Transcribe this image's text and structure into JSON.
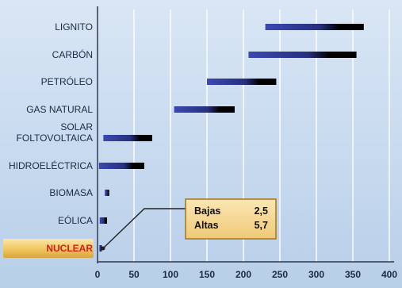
{
  "chart_data": {
    "type": "bar",
    "orientation": "horizontal",
    "title": "",
    "xlabel": "",
    "ylabel": "",
    "xlim": [
      0,
      400
    ],
    "x_ticks": [
      "0",
      "50",
      "100",
      "150",
      "200",
      "250",
      "300",
      "350",
      "400"
    ],
    "grid": "vertical",
    "categories": [
      {
        "lines": [
          "LIGNITO"
        ],
        "low": 230,
        "high": 365
      },
      {
        "lines": [
          "CARBÓN"
        ],
        "low": 207,
        "high": 355
      },
      {
        "lines": [
          "PETRÓLEO"
        ],
        "low": 150,
        "high": 245
      },
      {
        "lines": [
          "GAS NATURAL"
        ],
        "low": 105,
        "high": 188
      },
      {
        "lines": [
          "SOLAR",
          "FOLTOVOLTAICA"
        ],
        "low": 8,
        "high": 75
      },
      {
        "lines": [
          "HIDROELÉCTRICA"
        ],
        "low": 2,
        "high": 64
      },
      {
        "lines": [
          "BIOMASA"
        ],
        "low": 10,
        "high": 16
      },
      {
        "lines": [
          "EÓLICA"
        ],
        "low": 3,
        "high": 13
      },
      {
        "lines": [
          "NUCLEAR"
        ],
        "low": 2.5,
        "high": 5.7,
        "highlight": true
      }
    ],
    "callout": {
      "rows": [
        {
          "label": "Bajas",
          "value": "2,5"
        },
        {
          "label": "Altas",
          "value": "5,7"
        }
      ]
    },
    "colors": {
      "background": "#c4d8ee",
      "background_light": "#e2ecf7",
      "grid": "#ffffff",
      "bar_start": "#2f3c9e",
      "bar_end": "#000000",
      "axis": "#2a3550",
      "callout_fill": "#f3d48f",
      "callout_border": "#a8760f",
      "highlight_fill": "#f1c966",
      "highlight_text": "#d21f1f"
    }
  }
}
